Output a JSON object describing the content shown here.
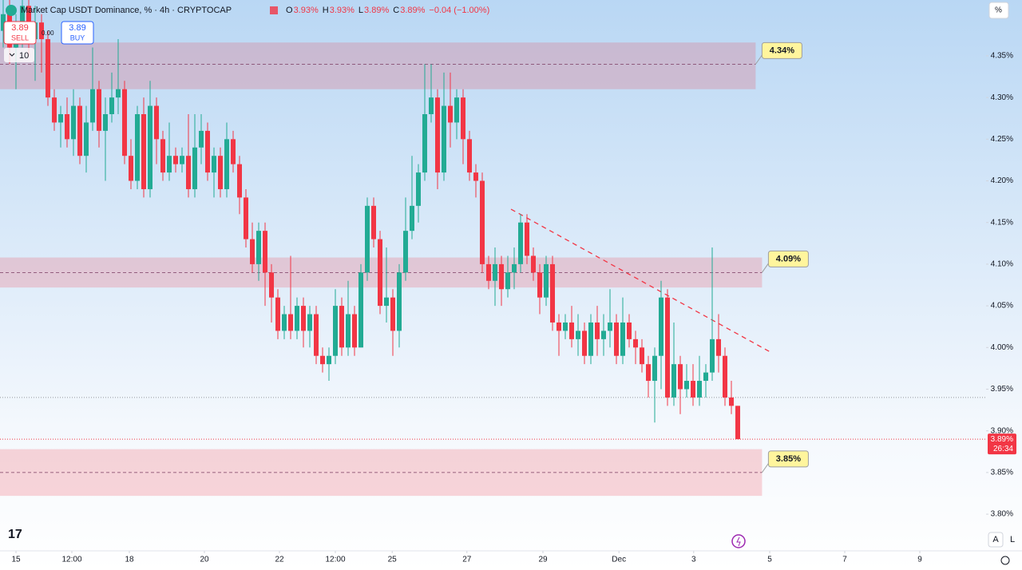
{
  "header": {
    "title": "Market Cap USDT Dominance, % · 4h · CRYPTOCAP",
    "ohlc": [
      {
        "label": "O",
        "value": "3.93%"
      },
      {
        "label": "H",
        "value": "3.93%"
      },
      {
        "label": "L",
        "value": "3.89%"
      },
      {
        "label": "C",
        "value": "3.89%"
      }
    ],
    "change": "−0.04 (−1.00%)",
    "sell": {
      "price": "3.89",
      "label": "SELL"
    },
    "spread": "0.00",
    "buy": {
      "price": "3.89",
      "label": "BUY"
    },
    "indicators": "10",
    "scale_mode": "%",
    "auto": "A",
    "log": "L"
  },
  "chart_data": {
    "type": "candlestick",
    "up_color": "#22ab94",
    "down_color": "#f23645",
    "xlim": [
      -0.5,
      153.875
    ],
    "ylim": [
      3.756,
      4.417
    ],
    "xticks": [
      {
        "value": 2,
        "label": "15"
      },
      {
        "value": 10.75,
        "label": "12:00"
      },
      {
        "value": 19.75,
        "label": "18"
      },
      {
        "value": 31.5,
        "label": "20"
      },
      {
        "value": 43.25,
        "label": "22"
      },
      {
        "value": 52,
        "label": "12:00"
      },
      {
        "value": 60.9,
        "label": "25"
      },
      {
        "value": 72.6,
        "label": "27"
      },
      {
        "value": 84.5,
        "label": "29"
      },
      {
        "value": 96.4,
        "label": "Dec"
      },
      {
        "value": 108.1,
        "label": "3"
      },
      {
        "value": 120,
        "label": "5"
      },
      {
        "value": 131.75,
        "label": "7"
      },
      {
        "value": 143.5,
        "label": "9"
      }
    ],
    "yticks": [
      {
        "value": 4.35,
        "label": "4.35%"
      },
      {
        "value": 4.3,
        "label": "4.30%"
      },
      {
        "value": 4.25,
        "label": "4.25%"
      },
      {
        "value": 4.2,
        "label": "4.20%"
      },
      {
        "value": 4.15,
        "label": "4.15%"
      },
      {
        "value": 4.1,
        "label": "4.10%"
      },
      {
        "value": 4.05,
        "label": "4.05%"
      },
      {
        "value": 4,
        "label": "4.00%"
      },
      {
        "value": 3.95,
        "label": "3.95%"
      },
      {
        "value": 3.9,
        "label": "3.90%"
      },
      {
        "value": 3.85,
        "label": "3.85%"
      },
      {
        "value": 3.8,
        "label": "3.80%"
      }
    ],
    "open": [
      4.38,
      4.4,
      4.36,
      4.38,
      4.41,
      4.37,
      4.39,
      4.37,
      4.3,
      4.27,
      4.28,
      4.25,
      4.29,
      4.23,
      4.27,
      4.31,
      4.26,
      4.28,
      4.3,
      4.31,
      4.23,
      4.2,
      4.28,
      4.19,
      4.29,
      4.25,
      4.21,
      4.23,
      4.22,
      4.23,
      4.19,
      4.24,
      4.26,
      4.21,
      4.23,
      4.19,
      4.25,
      4.22,
      4.18,
      4.13,
      4.1,
      4.14,
      4.09,
      4.06,
      4.02,
      4.04,
      4.02,
      4.05,
      4.02,
      4.04,
      3.99,
      3.98,
      3.99,
      4.05,
      4.0,
      4.04,
      4.0,
      4.09,
      4.17,
      4.13,
      4.05,
      4.06,
      4.02,
      4.09,
      4.14,
      4.17,
      4.21,
      4.28,
      4.3,
      4.21,
      4.29,
      4.27,
      4.3,
      4.25,
      4.21,
      4.2,
      4.1,
      4.08,
      4.1,
      4.07,
      4.09,
      4.1,
      4.15,
      4.11,
      4.09,
      4.06,
      4.1,
      4.03,
      4.02,
      4.03,
      4.01,
      4.02,
      3.99,
      4.03,
      4.01,
      4.02,
      4.03,
      3.99,
      4.03,
      4.01,
      4.0,
      3.98,
      3.96,
      3.99,
      4.06,
      3.94,
      3.98,
      3.95,
      3.96,
      3.94,
      3.96,
      3.97,
      4.01,
      3.99,
      3.94,
      3.93
    ],
    "high": [
      4.42,
      4.42,
      4.4,
      4.43,
      4.42,
      4.41,
      4.4,
      4.38,
      4.31,
      4.29,
      4.3,
      4.31,
      4.3,
      4.29,
      4.36,
      4.32,
      4.3,
      4.33,
      4.37,
      4.32,
      4.25,
      4.29,
      4.3,
      4.32,
      4.3,
      4.26,
      4.27,
      4.24,
      4.24,
      4.28,
      4.28,
      4.28,
      4.27,
      4.24,
      4.24,
      4.27,
      4.26,
      4.23,
      4.19,
      4.15,
      4.15,
      4.15,
      4.1,
      4.07,
      4.05,
      4.11,
      4.06,
      4.06,
      4.05,
      4.05,
      4.0,
      4.0,
      4.07,
      4.06,
      4.08,
      4.05,
      4.1,
      4.18,
      4.18,
      4.14,
      4.12,
      4.07,
      4.1,
      4.18,
      4.23,
      4.22,
      4.34,
      4.34,
      4.31,
      4.33,
      4.33,
      4.31,
      4.31,
      4.26,
      4.22,
      4.21,
      4.11,
      4.12,
      4.11,
      4.11,
      4.12,
      4.16,
      4.16,
      4.12,
      4.1,
      4.11,
      4.11,
      4.04,
      4.04,
      4.05,
      4.04,
      4.03,
      4.04,
      4.05,
      4.04,
      4.07,
      4.04,
      4.06,
      4.04,
      4.02,
      4.01,
      3.99,
      4.0,
      4.08,
      4.07,
      4.03,
      3.99,
      3.98,
      3.98,
      3.99,
      3.98,
      4.12,
      4.04,
      4.0,
      3.96,
      3.93
    ],
    "low": [
      4.36,
      4.34,
      4.31,
      4.36,
      4.35,
      4.32,
      4.33,
      4.29,
      4.26,
      4.24,
      4.24,
      4.23,
      4.22,
      4.21,
      4.26,
      4.24,
      4.2,
      4.27,
      4.28,
      4.22,
      4.19,
      4.19,
      4.18,
      4.18,
      4.22,
      4.2,
      4.2,
      4.21,
      4.21,
      4.18,
      4.18,
      4.22,
      4.2,
      4.18,
      4.18,
      4.18,
      4.21,
      4.16,
      4.12,
      4.09,
      4.08,
      4.05,
      4.03,
      4.01,
      4.01,
      4.01,
      4.01,
      4.0,
      4.0,
      3.98,
      3.97,
      3.96,
      3.98,
      3.99,
      3.99,
      3.99,
      4.0,
      4.08,
      4.12,
      4.04,
      4.03,
      3.99,
      4.0,
      4.08,
      4.13,
      4.15,
      4.2,
      4.27,
      4.19,
      4.2,
      4.24,
      4.25,
      4.22,
      4.2,
      4.18,
      4.09,
      4.07,
      4.05,
      4.05,
      4.06,
      4.07,
      4.09,
      4.1,
      4.08,
      4.04,
      4.05,
      4.02,
      3.99,
      4.01,
      4.0,
      3.99,
      3.98,
      3.98,
      3.99,
      3.99,
      4.0,
      3.98,
      3.98,
      4.0,
      3.98,
      3.97,
      3.94,
      3.91,
      3.95,
      3.93,
      3.93,
      3.92,
      3.94,
      3.93,
      3.93,
      3.94,
      3.96,
      3.97,
      3.93,
      3.92,
      3.89
    ],
    "close": [
      4.4,
      4.36,
      4.38,
      4.41,
      4.37,
      4.39,
      4.37,
      4.3,
      4.27,
      4.28,
      4.25,
      4.29,
      4.23,
      4.27,
      4.31,
      4.26,
      4.28,
      4.3,
      4.31,
      4.23,
      4.2,
      4.28,
      4.19,
      4.29,
      4.25,
      4.21,
      4.23,
      4.22,
      4.23,
      4.19,
      4.24,
      4.26,
      4.21,
      4.23,
      4.19,
      4.25,
      4.22,
      4.18,
      4.13,
      4.1,
      4.14,
      4.09,
      4.06,
      4.02,
      4.04,
      4.02,
      4.05,
      4.02,
      4.04,
      3.99,
      3.98,
      3.99,
      4.05,
      4.0,
      4.04,
      4.0,
      4.09,
      4.17,
      4.13,
      4.05,
      4.06,
      4.02,
      4.09,
      4.14,
      4.17,
      4.21,
      4.28,
      4.3,
      4.21,
      4.29,
      4.27,
      4.3,
      4.25,
      4.21,
      4.2,
      4.1,
      4.08,
      4.1,
      4.07,
      4.09,
      4.1,
      4.15,
      4.11,
      4.09,
      4.06,
      4.1,
      4.03,
      4.02,
      4.03,
      4.01,
      4.02,
      3.99,
      4.03,
      4.01,
      4.02,
      4.03,
      3.99,
      4.03,
      4.01,
      4.0,
      3.98,
      3.96,
      3.99,
      4.06,
      3.94,
      3.98,
      3.95,
      3.96,
      3.94,
      3.96,
      3.97,
      4.01,
      3.99,
      3.94,
      3.93,
      3.89
    ],
    "zones": [
      {
        "label": "4.34%",
        "level": 4.34,
        "top": 4.366,
        "bottom": 4.31,
        "end": 117.8
      },
      {
        "label": "4.09%",
        "level": 4.09,
        "top": 4.108,
        "bottom": 4.072,
        "end": 118.8
      },
      {
        "label": "3.85%",
        "level": 3.85,
        "top": 3.878,
        "bottom": 3.822,
        "end": 118.8
      }
    ],
    "trendline": {
      "x": [
        79.5,
        120
      ],
      "y": [
        4.166,
        3.995
      ]
    },
    "level_line": 3.94,
    "last_price": {
      "value": 3.89,
      "label": "3.89%",
      "countdown": "26:34"
    }
  }
}
